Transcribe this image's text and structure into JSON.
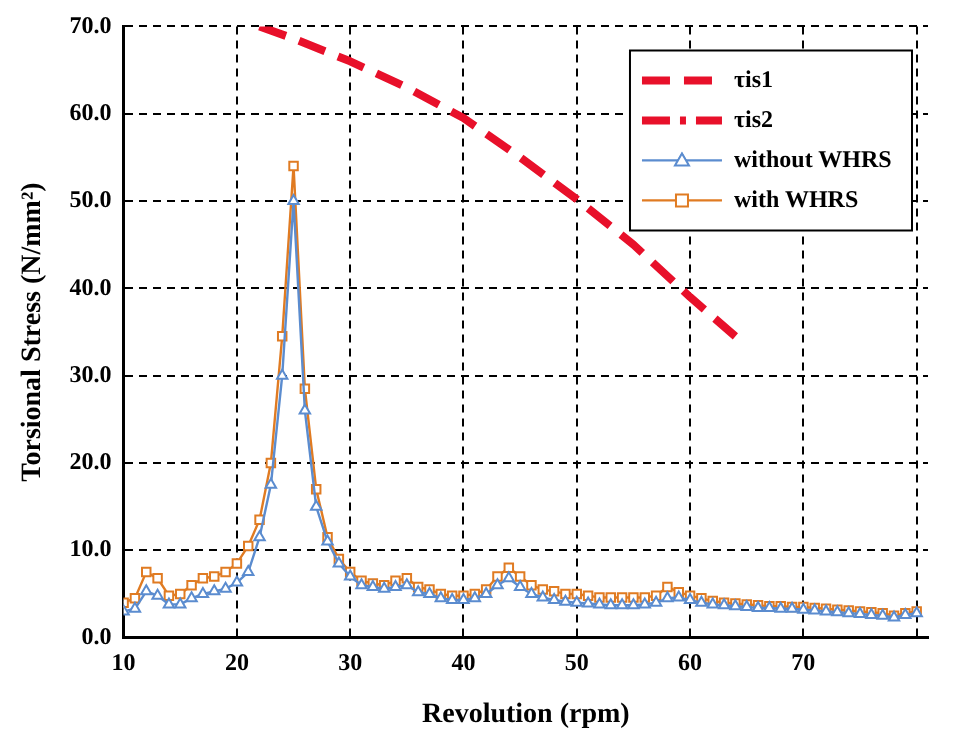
{
  "chart_data": {
    "type": "line",
    "xlabel": "Revolution (rpm)",
    "ylabel": "Torsional Stress (N/mm²)",
    "x": [
      10,
      11,
      12,
      13,
      14,
      15,
      16,
      17,
      18,
      19,
      20,
      21,
      22,
      23,
      24,
      25,
      26,
      27,
      28,
      29,
      30,
      31,
      32,
      33,
      34,
      35,
      36,
      37,
      38,
      39,
      40,
      41,
      42,
      43,
      44,
      45,
      46,
      47,
      48,
      49,
      50,
      51,
      52,
      53,
      54,
      55,
      56,
      57,
      58,
      59,
      60,
      61,
      62,
      63,
      64,
      65,
      66,
      67,
      68,
      69,
      70,
      71,
      72,
      73,
      74,
      75,
      76,
      77,
      78,
      79,
      80
    ],
    "series": [
      {
        "name": "τis1",
        "color": "#e8102a",
        "x": [
          22,
          25,
          30,
          35,
          40,
          45,
          50,
          55,
          60,
          64
        ],
        "values": [
          70,
          68.6,
          66,
          63,
          59.5,
          55,
          50.2,
          45,
          39,
          34.5
        ],
        "marker": "none",
        "line_style": "dashed"
      },
      {
        "name": "τis2",
        "color": "#e8102a",
        "values": [
          null,
          null,
          null,
          null,
          null,
          null,
          null,
          null,
          null,
          null,
          null,
          null,
          null,
          null,
          null,
          null,
          null,
          null,
          null,
          null,
          null,
          null,
          null,
          null,
          null,
          null,
          null,
          null,
          null,
          null,
          null,
          null,
          null,
          null,
          null,
          null,
          null,
          null,
          null,
          null,
          null,
          null,
          null,
          null,
          null,
          null,
          null,
          null,
          null,
          null,
          null,
          null,
          null,
          null,
          null,
          null,
          null,
          null,
          null,
          null,
          null,
          null,
          null,
          null,
          null,
          null,
          null,
          null,
          null,
          null,
          null
        ],
        "marker": "none",
        "line_style": "dotted"
      },
      {
        "name": "without WHRS",
        "color": "#5b8ccf",
        "marker": "triangle",
        "line_style": "solid",
        "values": [
          3,
          3.3,
          5.3,
          4.8,
          3.8,
          3.8,
          4.5,
          5,
          5.3,
          5.6,
          6.3,
          7.5,
          11.5,
          17.5,
          30,
          50,
          26,
          15,
          11,
          8.5,
          7,
          6,
          5.8,
          5.6,
          5.8,
          6,
          5.2,
          5,
          4.5,
          4.3,
          4.3,
          4.5,
          5,
          6,
          6.8,
          5.8,
          5,
          4.6,
          4.3,
          4.1,
          4,
          3.9,
          3.8,
          3.7,
          3.7,
          3.7,
          3.8,
          4,
          4.5,
          4.6,
          4.3,
          4,
          3.8,
          3.7,
          3.6,
          3.5,
          3.4,
          3.4,
          3.3,
          3.3,
          3.2,
          3.1,
          3,
          2.9,
          2.8,
          2.7,
          2.6,
          2.5,
          2.3,
          2.6,
          2.8
        ]
      },
      {
        "name": "with WHRS",
        "color": "#e07b22",
        "marker": "square",
        "line_style": "solid",
        "values": [
          4,
          4.5,
          7.5,
          6.8,
          4.8,
          5,
          6,
          6.8,
          7,
          7.5,
          8.5,
          10.5,
          13.5,
          20,
          34.5,
          54,
          28.5,
          17,
          11.5,
          9,
          7.5,
          6.5,
          6.2,
          6,
          6.5,
          6.8,
          5.8,
          5.5,
          5,
          4.8,
          4.8,
          5,
          5.5,
          7,
          8,
          7,
          6,
          5.5,
          5.3,
          5,
          5,
          4.8,
          4.6,
          4.6,
          4.6,
          4.6,
          4.6,
          4.8,
          5.8,
          5.2,
          4.8,
          4.5,
          4.2,
          4,
          3.9,
          3.8,
          3.7,
          3.6,
          3.6,
          3.5,
          3.5,
          3.4,
          3.3,
          3.2,
          3.1,
          3,
          2.9,
          2.8,
          2.5,
          2.8,
          3
        ]
      }
    ],
    "xlim": [
      10,
      81
    ],
    "xticks": [
      10,
      20,
      30,
      40,
      50,
      60,
      70,
      {
        "value": 80,
        "label": null
      }
    ],
    "ylim": [
      0,
      70
    ],
    "yticks": [
      {
        "value": 0,
        "label": "0.0"
      },
      {
        "value": 10,
        "label": "10.0"
      },
      {
        "value": 20,
        "label": "20.0"
      },
      {
        "value": 30,
        "label": "30.0"
      },
      {
        "value": 40,
        "label": "40.0"
      },
      {
        "value": 50,
        "label": "50.0"
      },
      {
        "value": 60,
        "label": "60.0"
      },
      {
        "value": 70,
        "label": "70.0"
      }
    ],
    "grid": true,
    "legend": "top right"
  }
}
